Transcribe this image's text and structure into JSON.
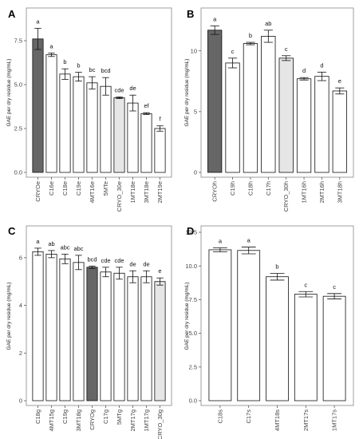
{
  "colors": {
    "dark_bar": "#666666",
    "light_bar": "#e6e6e6",
    "white_bar": "#ffffff",
    "bar_stroke": "#111111",
    "frame": "#888888"
  },
  "chart_data": [
    {
      "panel": "A",
      "type": "bar",
      "ylabel": "GAE per dry residue (mg/mL)",
      "ylim": [
        0,
        9
      ],
      "yticks": [
        "0.0",
        "2.5",
        "5.0",
        "7.5"
      ],
      "ytick_values": [
        0,
        2.5,
        5.0,
        7.5
      ],
      "categories": [
        "CRYOe",
        "C16e",
        "C18e",
        "C19e",
        "4MT16e",
        "5MTe",
        "CRYO_30e",
        "1MT18e",
        "3MT18e",
        "2MT19e"
      ],
      "values": [
        7.6,
        6.7,
        5.6,
        5.45,
        5.1,
        4.9,
        4.25,
        3.95,
        3.35,
        2.5
      ],
      "errors": [
        0.6,
        0.1,
        0.3,
        0.25,
        0.35,
        0.5,
        0.05,
        0.45,
        0.05,
        0.15
      ],
      "sig": [
        "a",
        "a",
        "b",
        "b",
        "bc",
        "bcd",
        "cde",
        "de",
        "ef",
        "f"
      ],
      "fills": [
        "dark_bar",
        "white_bar",
        "white_bar",
        "white_bar",
        "white_bar",
        "white_bar",
        "light_bar",
        "white_bar",
        "white_bar",
        "white_bar"
      ]
    },
    {
      "panel": "B",
      "type": "bar",
      "ylabel": "GAE per dry residue (mg/mL)",
      "ylim": [
        0,
        13
      ],
      "yticks": [
        "0",
        "5",
        "10"
      ],
      "ytick_values": [
        0,
        5,
        10
      ],
      "categories": [
        "CRYOh",
        "C19h",
        "C18h",
        "C17h",
        "CRYO_30h",
        "1MT16h",
        "2MT16h",
        "3MT18h"
      ],
      "values": [
        11.7,
        9.0,
        10.6,
        11.2,
        9.4,
        7.7,
        7.9,
        6.7
      ],
      "errors": [
        0.35,
        0.4,
        0.1,
        0.5,
        0.2,
        0.1,
        0.35,
        0.25
      ],
      "sig": [
        "a",
        "c",
        "b",
        "ab",
        "c",
        "d",
        "d",
        "e"
      ],
      "fills": [
        "dark_bar",
        "white_bar",
        "white_bar",
        "white_bar",
        "light_bar",
        "white_bar",
        "white_bar",
        "white_bar"
      ]
    },
    {
      "panel": "C",
      "type": "bar",
      "ylabel": "GAE per dry residue (mg/mL)",
      "ylim": [
        0,
        7
      ],
      "yticks": [
        "0",
        "2",
        "4",
        "6"
      ],
      "ytick_values": [
        0,
        2,
        4,
        6
      ],
      "categories": [
        "C18g",
        "4MT15g",
        "C19g",
        "3MT18g",
        "CRYOg",
        "C17g",
        "5MTg",
        "2MT17g",
        "1MT17g",
        "CRYO_30g"
      ],
      "values": [
        6.25,
        6.15,
        5.95,
        5.8,
        5.6,
        5.4,
        5.35,
        5.2,
        5.2,
        5.0
      ],
      "errors": [
        0.15,
        0.15,
        0.2,
        0.3,
        0.05,
        0.2,
        0.25,
        0.25,
        0.25,
        0.15
      ],
      "sig": [
        "a",
        "ab",
        "abc",
        "abc",
        "bcd",
        "cde",
        "cde",
        "de",
        "de",
        "e"
      ],
      "fills": [
        "white_bar",
        "white_bar",
        "white_bar",
        "white_bar",
        "dark_bar",
        "white_bar",
        "white_bar",
        "white_bar",
        "white_bar",
        "light_bar"
      ]
    },
    {
      "panel": "D",
      "type": "bar",
      "ylabel": "GAE per dry residue (mg/mL)",
      "ylim": [
        0,
        12.5
      ],
      "yticks": [
        "0.0",
        "2.5",
        "5.0",
        "7.5",
        "10.0",
        "12.5"
      ],
      "ytick_values": [
        0,
        2.5,
        5.0,
        7.5,
        10.0,
        12.5
      ],
      "categories": [
        "C18s",
        "C17s",
        "4MT18s",
        "2MT17s",
        "1MT17s"
      ],
      "values": [
        11.2,
        11.15,
        9.2,
        7.9,
        7.75
      ],
      "errors": [
        0.15,
        0.25,
        0.25,
        0.2,
        0.2
      ],
      "sig": [
        "a",
        "a",
        "b",
        "c",
        "c"
      ],
      "fills": [
        "white_bar",
        "white_bar",
        "white_bar",
        "white_bar",
        "white_bar"
      ]
    }
  ]
}
